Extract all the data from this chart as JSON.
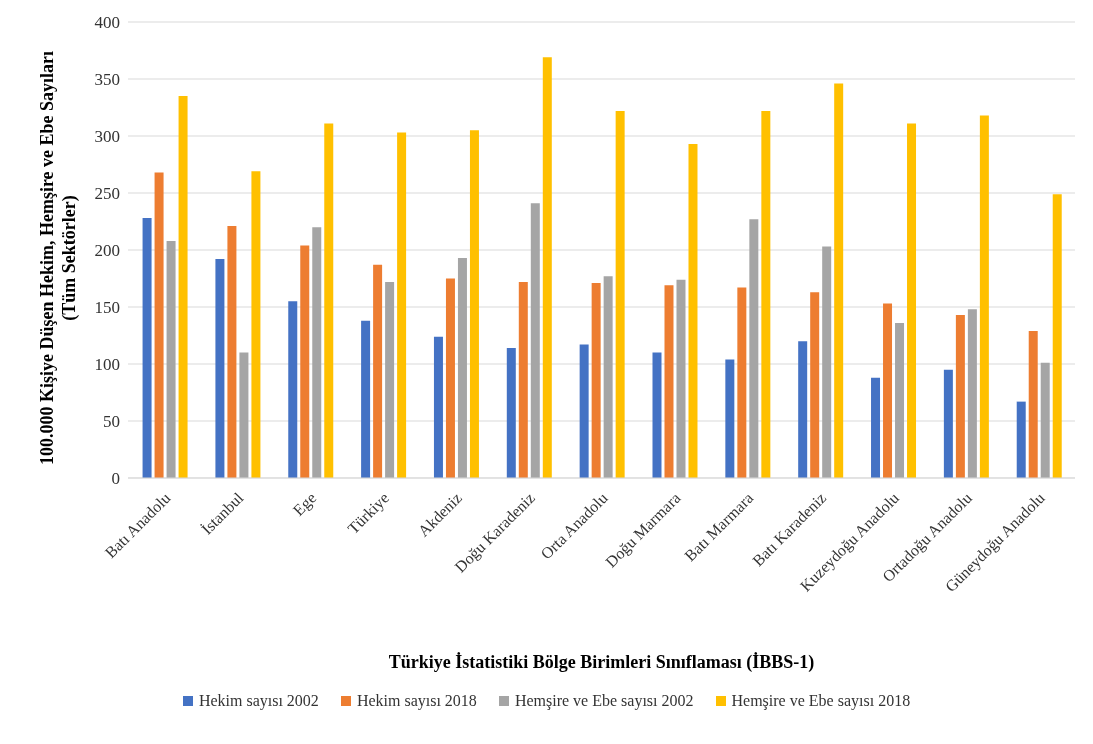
{
  "chart_data": {
    "type": "bar",
    "xlabel": "Türkiye İstatistiki Bölge Birimleri Sınıflaması (İBBS-1)",
    "ylabel": "100.000 Kişiye Düşen Hekim, Hemşire ve Ebe Sayıları\n(Tüm Sektörler)",
    "categories": [
      "Batı Anadolu",
      "İstanbul",
      "Ege",
      "Türkiye",
      "Akdeniz",
      "Doğu Karadeniz",
      "Orta Anadolu",
      "Doğu Marmara",
      "Batı Marmara",
      "Batı Karadeniz",
      "Kuzeydoğu Anadolu",
      "Ortadoğu Anadolu",
      "Güneydoğu Anadolu"
    ],
    "series": [
      {
        "name": "Hekim sayısı 2002",
        "color": "#4472c4",
        "values": [
          228,
          192,
          155,
          138,
          124,
          114,
          117,
          110,
          104,
          120,
          88,
          95,
          67
        ]
      },
      {
        "name": "Hekim sayısı 2018",
        "color": "#ed7d31",
        "values": [
          268,
          221,
          204,
          187,
          175,
          172,
          171,
          169,
          167,
          163,
          153,
          143,
          129
        ]
      },
      {
        "name": "Hemşire ve Ebe sayısı 2002",
        "color": "#a5a5a5",
        "values": [
          208,
          110,
          220,
          172,
          193,
          241,
          177,
          174,
          227,
          203,
          136,
          148,
          101
        ]
      },
      {
        "name": "Hemşire ve Ebe sayısı 2018",
        "color": "#ffc000",
        "values": [
          335,
          269,
          311,
          303,
          305,
          369,
          322,
          293,
          322,
          346,
          311,
          318,
          249
        ]
      }
    ],
    "ylim": [
      0,
      400
    ],
    "yticks": [
      0,
      50,
      100,
      150,
      200,
      250,
      300,
      350,
      400
    ],
    "grid": "y",
    "legend": "bottom"
  }
}
